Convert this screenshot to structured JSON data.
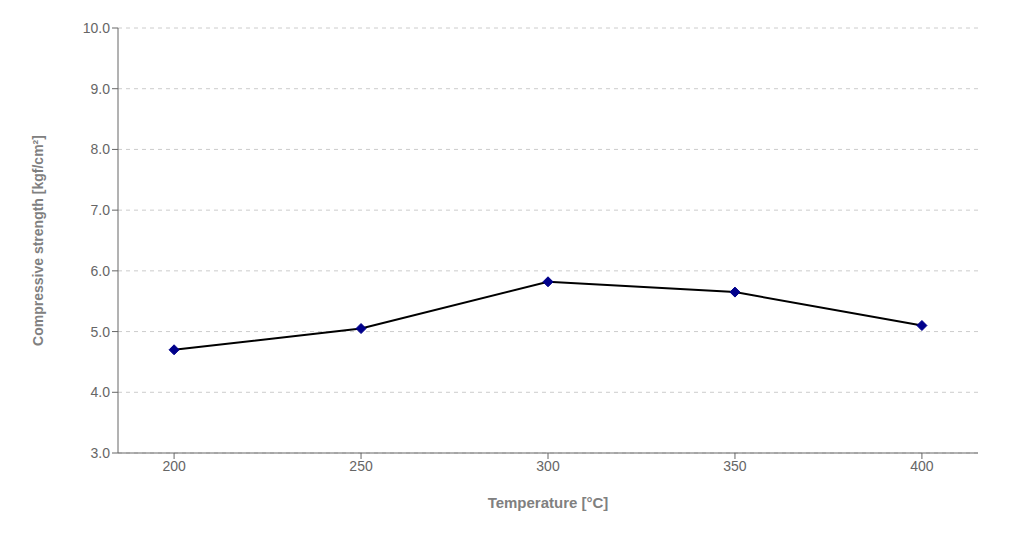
{
  "chart_data": {
    "type": "line",
    "x": [
      200,
      250,
      300,
      350,
      400
    ],
    "series": [
      {
        "values": [
          4.7,
          5.05,
          5.82,
          5.65,
          5.1
        ],
        "color": "#000000",
        "colors": [
          "#00008B",
          "#00008B",
          "#00008B",
          "#00008B",
          "#00008B"
        ],
        "marker": "diamond",
        "line_style": "solid"
      }
    ],
    "xlabel": "Temperature [°C]",
    "ylabel": "Compressive strength [kgf/cm²]",
    "xlim": [
      185,
      415
    ],
    "ylim": [
      3.0,
      10.0
    ],
    "xticks": [
      200,
      250,
      300,
      350,
      400
    ],
    "yticks": [
      {
        "value": 3.0,
        "label": "3.0"
      },
      {
        "value": 4.0,
        "label": "4.0"
      },
      {
        "value": 5.0,
        "label": "5.0"
      },
      {
        "value": 6.0,
        "label": "6.0"
      },
      {
        "value": 7.0,
        "label": "7.0"
      },
      {
        "value": 8.0,
        "label": "8.0"
      },
      {
        "value": 9.0,
        "label": "9.0"
      },
      {
        "value": 10.0,
        "label": "10.0"
      }
    ],
    "grid": "y"
  }
}
